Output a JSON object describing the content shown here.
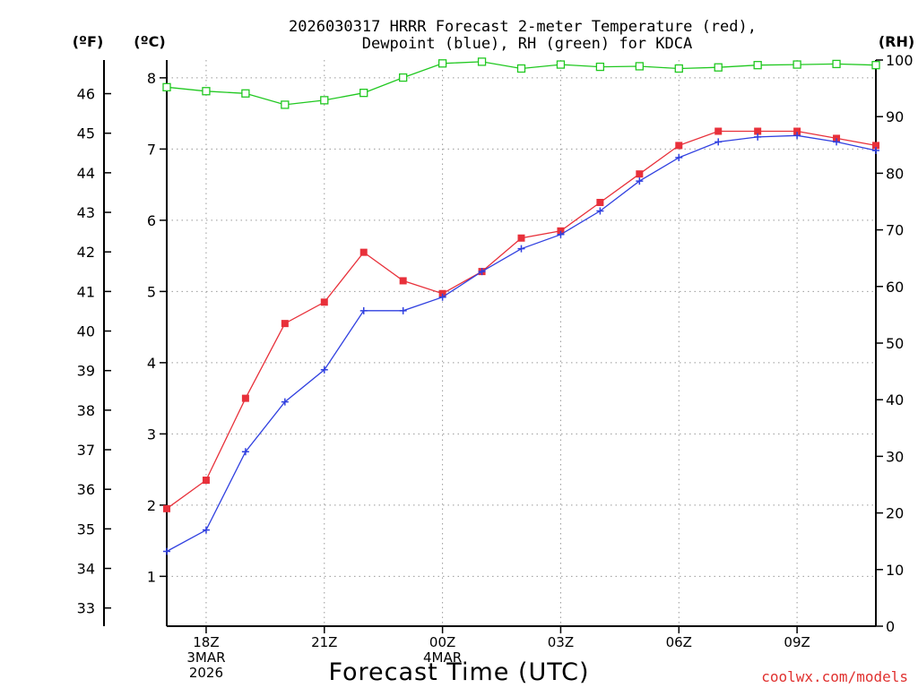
{
  "title_line1": "2026030317 HRRR Forecast 2-meter Temperature (red),",
  "title_line2": "Dewpoint (blue), RH (green) for KDCA",
  "unit_f": "(ºF)",
  "unit_c": "(ºC)",
  "unit_rh": "(RH)",
  "xlabel": "Forecast Time (UTC)",
  "credit": "coolwx.com/models",
  "colors": {
    "temperature": "#e8303a",
    "dewpoint": "#3040e0",
    "rh": "#20c820",
    "credit": "#e0312f"
  },
  "chart_data": {
    "type": "line",
    "title": "2026030317 HRRR Forecast 2-meter Temperature (red), Dewpoint (blue), RH (green) for KDCA",
    "xlabel": "Forecast Time (UTC)",
    "x_hours": [
      17,
      18,
      19,
      20,
      21,
      22,
      23,
      24,
      25,
      26,
      27,
      28,
      29,
      30,
      31,
      32,
      33,
      34,
      35
    ],
    "x_range": [
      17,
      35
    ],
    "x_ticks": [
      {
        "hour": 18,
        "lines": [
          "18Z",
          "3MAR",
          "2026"
        ]
      },
      {
        "hour": 21,
        "lines": [
          "21Z"
        ]
      },
      {
        "hour": 24,
        "lines": [
          "00Z",
          "4MAR"
        ]
      },
      {
        "hour": 27,
        "lines": [
          "03Z"
        ]
      },
      {
        "hour": 30,
        "lines": [
          "06Z"
        ]
      },
      {
        "hour": 33,
        "lines": [
          "09Z"
        ]
      }
    ],
    "yaxis_c": {
      "label": "(ºC)",
      "range": [
        0.3,
        8.25
      ],
      "ticks": [
        1,
        2,
        3,
        4,
        5,
        6,
        7,
        8
      ]
    },
    "yaxis_f": {
      "label": "(ºF)",
      "ticks": [
        33,
        34,
        35,
        36,
        37,
        38,
        39,
        40,
        41,
        42,
        43,
        44,
        45,
        46
      ]
    },
    "yaxis_rh": {
      "label": "(RH)",
      "range": [
        0,
        100
      ],
      "ticks": [
        0,
        10,
        20,
        30,
        40,
        50,
        60,
        70,
        80,
        90,
        100
      ]
    },
    "series": [
      {
        "name": "2-meter Temperature",
        "color": "#e8303a",
        "marker": "square-filled",
        "axis": "c",
        "values": [
          1.95,
          2.35,
          3.5,
          4.55,
          4.85,
          5.55,
          5.15,
          4.97,
          5.28,
          5.75,
          5.85,
          6.25,
          6.65,
          7.05,
          7.25,
          7.25,
          7.25,
          7.15,
          7.05
        ]
      },
      {
        "name": "Dewpoint",
        "color": "#3040e0",
        "marker": "plus",
        "axis": "c",
        "values": [
          1.35,
          1.65,
          2.75,
          3.45,
          3.9,
          4.73,
          4.73,
          4.92,
          5.28,
          5.6,
          5.8,
          6.13,
          6.55,
          6.88,
          7.1,
          7.17,
          7.19,
          7.1,
          6.98
        ]
      },
      {
        "name": "Relative Humidity",
        "color": "#20c820",
        "marker": "square-open",
        "axis": "rh",
        "values": [
          95.2,
          94.5,
          94.1,
          92.1,
          92.9,
          94.2,
          96.9,
          99.4,
          99.7,
          98.5,
          99.2,
          98.8,
          98.9,
          98.5,
          98.7,
          99.1,
          99.2,
          99.3,
          99.1
        ]
      }
    ]
  }
}
